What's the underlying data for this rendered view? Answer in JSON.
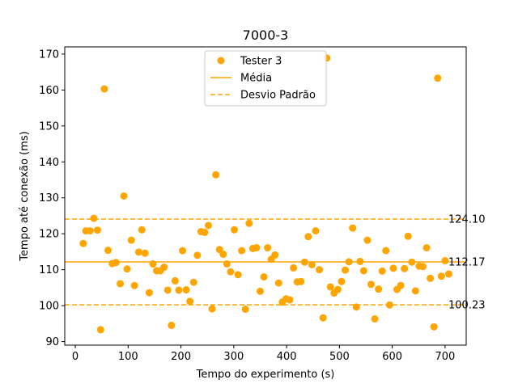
{
  "chart_data": {
    "type": "scatter",
    "title": "7000-3",
    "xlabel": "Tempo do experimento (s)",
    "ylabel": "Tempo até conexão (ms)",
    "xlim": [
      -20,
      740
    ],
    "ylim": [
      89,
      172
    ],
    "xticks": [
      0,
      100,
      200,
      300,
      400,
      500,
      600,
      700
    ],
    "yticks": [
      90,
      100,
      110,
      120,
      130,
      140,
      150,
      160,
      170
    ],
    "grid": false,
    "legend_position": "top-center",
    "colors": {
      "points": "#FFA500",
      "mean": "#FFA500",
      "std": "#FFA500"
    },
    "series": [
      {
        "name": "Tester 3",
        "marker": "circle",
        "points": [
          [
            15,
            117.3
          ],
          [
            20,
            120.8
          ],
          [
            28,
            120.8
          ],
          [
            35,
            124.3
          ],
          [
            42,
            121.0
          ],
          [
            48,
            93.3
          ],
          [
            55,
            160.3
          ],
          [
            62,
            115.4
          ],
          [
            70,
            111.7
          ],
          [
            77,
            112.0
          ],
          [
            85,
            106.1
          ],
          [
            92,
            130.5
          ],
          [
            98,
            110.2
          ],
          [
            106,
            118.2
          ],
          [
            112,
            105.6
          ],
          [
            120,
            114.9
          ],
          [
            126,
            121.1
          ],
          [
            132,
            114.6
          ],
          [
            140,
            103.6
          ],
          [
            147,
            111.6
          ],
          [
            154,
            109.7
          ],
          [
            161,
            109.7
          ],
          [
            168,
            110.7
          ],
          [
            175,
            104.3
          ],
          [
            182,
            94.5
          ],
          [
            189,
            106.9
          ],
          [
            196,
            104.3
          ],
          [
            203,
            115.3
          ],
          [
            210,
            104.4
          ],
          [
            217,
            101.2
          ],
          [
            224,
            106.5
          ],
          [
            231,
            114.0
          ],
          [
            238,
            120.6
          ],
          [
            245,
            120.4
          ],
          [
            252,
            122.3
          ],
          [
            259,
            99.1
          ],
          [
            266,
            136.4
          ],
          [
            273,
            115.6
          ],
          [
            280,
            114.3
          ],
          [
            287,
            111.6
          ],
          [
            294,
            109.4
          ],
          [
            301,
            121.1
          ],
          [
            308,
            108.6
          ],
          [
            315,
            115.3
          ],
          [
            322,
            99.0
          ],
          [
            329,
            122.9
          ],
          [
            336,
            115.9
          ],
          [
            343,
            116.1
          ],
          [
            350,
            104.0
          ],
          [
            357,
            108.0
          ],
          [
            364,
            116.1
          ],
          [
            371,
            112.9
          ],
          [
            378,
            114.1
          ],
          [
            385,
            106.3
          ],
          [
            392,
            101.0
          ],
          [
            399,
            101.9
          ],
          [
            406,
            101.6
          ],
          [
            413,
            110.5
          ],
          [
            420,
            106.6
          ],
          [
            427,
            106.7
          ],
          [
            434,
            112.1
          ],
          [
            441,
            119.2
          ],
          [
            448,
            111.4
          ],
          [
            455,
            120.8
          ],
          [
            462,
            110.0
          ],
          [
            469,
            96.6
          ],
          [
            476,
            168.9
          ],
          [
            483,
            105.2
          ],
          [
            490,
            103.5
          ],
          [
            497,
            104.5
          ],
          [
            504,
            106.7
          ],
          [
            511,
            109.9
          ],
          [
            518,
            112.2
          ],
          [
            525,
            121.6
          ],
          [
            532,
            99.6
          ],
          [
            539,
            112.3
          ],
          [
            546,
            109.7
          ],
          [
            553,
            118.2
          ],
          [
            560,
            105.9
          ],
          [
            567,
            96.3
          ],
          [
            574,
            104.6
          ],
          [
            581,
            109.6
          ],
          [
            588,
            115.3
          ],
          [
            595,
            100.2
          ],
          [
            602,
            110.4
          ],
          [
            609,
            104.5
          ],
          [
            616,
            105.6
          ],
          [
            623,
            110.3
          ],
          [
            630,
            119.3
          ],
          [
            637,
            112.1
          ],
          [
            644,
            104.1
          ],
          [
            651,
            111.0
          ],
          [
            658,
            110.9
          ],
          [
            665,
            116.1
          ],
          [
            672,
            107.6
          ],
          [
            679,
            94.1
          ],
          [
            686,
            163.3
          ],
          [
            693,
            108.2
          ],
          [
            700,
            112.5
          ],
          [
            707,
            108.8
          ]
        ]
      }
    ],
    "reference_lines": [
      {
        "name": "Média",
        "style": "solid",
        "y": 112.17,
        "label": "112.17"
      },
      {
        "name": "Desvio Padrão",
        "style": "dashed",
        "y": 124.1,
        "label": "124.10"
      },
      {
        "name": "Desvio Padrão",
        "style": "dashed",
        "y": 100.23,
        "label": "100.23"
      }
    ],
    "legend": [
      {
        "label": "Tester 3",
        "kind": "marker"
      },
      {
        "label": "Média",
        "kind": "solid"
      },
      {
        "label": "Desvio Padrão",
        "kind": "dashed"
      }
    ]
  }
}
